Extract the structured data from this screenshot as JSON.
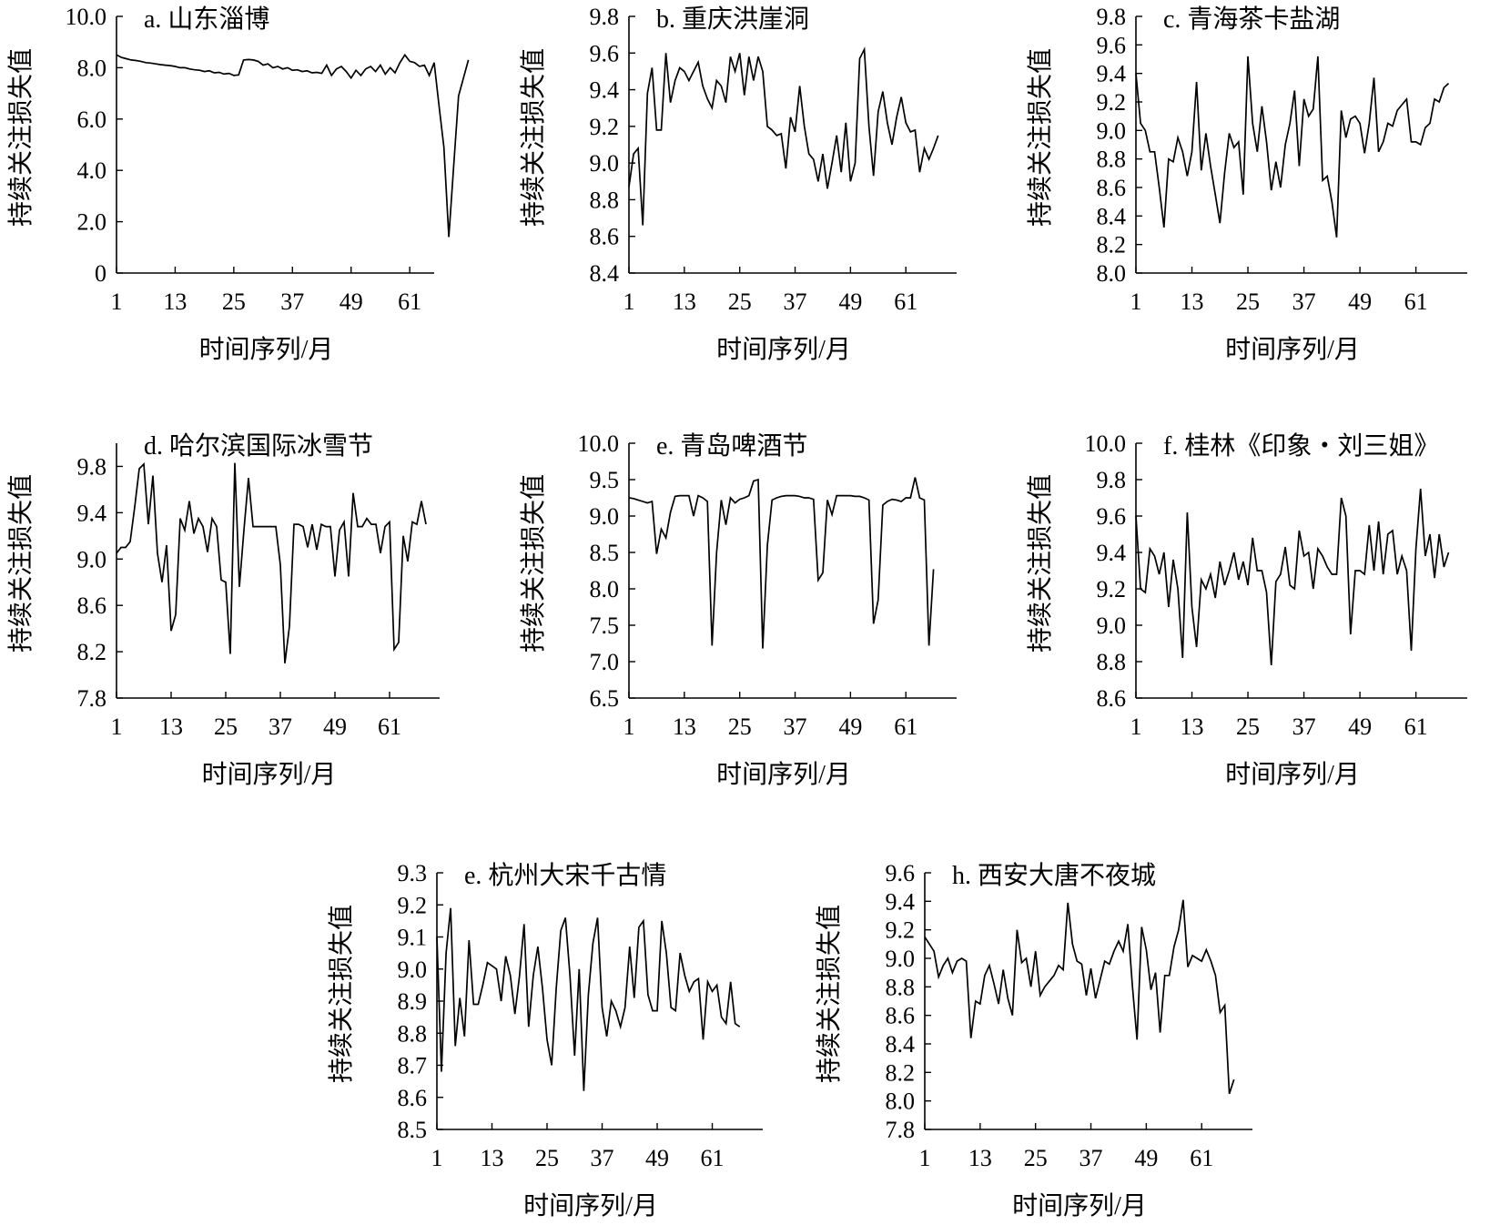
{
  "chart_data": [
    {
      "type": "line",
      "title": "a. 山东淄博",
      "xlabel": "时间序列/月",
      "ylabel": "持续关注损失值",
      "xlim": [
        1,
        66
      ],
      "xticks": [
        1,
        13,
        25,
        37,
        49,
        61
      ],
      "ylim": [
        0,
        10
      ],
      "yticks": [
        0,
        2,
        4,
        6,
        8,
        10
      ],
      "ytick_labels": [
        "0",
        "2.0",
        "4.0",
        "6.0",
        "8.0",
        "10.0"
      ],
      "grid": false,
      "x_start": 1,
      "values": [
        8.5,
        8.4,
        8.35,
        8.3,
        8.28,
        8.25,
        8.2,
        8.18,
        8.15,
        8.12,
        8.1,
        8.08,
        8.05,
        8.0,
        8.0,
        7.95,
        7.92,
        7.9,
        7.85,
        7.88,
        7.8,
        7.82,
        7.75,
        7.78,
        7.7,
        7.72,
        8.3,
        8.32,
        8.3,
        8.25,
        8.1,
        8.15,
        8.0,
        8.05,
        7.95,
        8.0,
        7.9,
        7.92,
        7.85,
        7.88,
        7.8,
        7.82,
        7.78,
        8.1,
        7.7,
        7.95,
        8.05,
        7.85,
        7.6,
        7.9,
        7.7,
        7.95,
        8.05,
        7.85,
        8.1,
        7.75,
        8.0,
        7.8,
        8.2,
        8.5,
        8.25,
        8.2,
        8.05,
        8.1,
        7.7,
        8.2,
        6.5,
        4.9,
        1.4,
        4.2,
        6.9,
        7.6,
        8.3
      ]
    },
    {
      "type": "line",
      "title": "b. 重庆洪崖洞",
      "xlabel": "时间序列/月",
      "ylabel": "持续关注损失值",
      "xlim": [
        1,
        72
      ],
      "xticks": [
        1,
        13,
        25,
        37,
        49,
        61
      ],
      "ylim": [
        8.4,
        9.8
      ],
      "yticks": [
        8.4,
        8.6,
        8.8,
        9.0,
        9.2,
        9.4,
        9.6,
        9.8
      ],
      "ytick_labels": [
        "8.4",
        "8.6",
        "8.8",
        "9.0",
        "9.2",
        "9.4",
        "9.6",
        "9.8"
      ],
      "grid": false,
      "x_start": 1,
      "values": [
        8.87,
        9.05,
        9.08,
        8.66,
        9.38,
        9.52,
        9.18,
        9.18,
        9.6,
        9.33,
        9.45,
        9.52,
        9.5,
        9.45,
        9.5,
        9.55,
        9.42,
        9.35,
        9.3,
        9.45,
        9.42,
        9.33,
        9.58,
        9.5,
        9.6,
        9.37,
        9.58,
        9.45,
        9.58,
        9.5,
        9.2,
        9.18,
        9.15,
        9.16,
        8.97,
        9.25,
        9.17,
        9.42,
        9.2,
        9.05,
        9.02,
        8.9,
        9.05,
        8.86,
        9.0,
        9.15,
        8.95,
        9.22,
        8.9,
        9.0,
        9.57,
        9.62,
        9.2,
        8.93,
        9.28,
        9.39,
        9.22,
        9.1,
        9.25,
        9.36,
        9.22,
        9.17,
        9.18,
        8.95,
        9.08,
        9.02,
        9.08,
        9.15
      ]
    },
    {
      "type": "line",
      "title": "c. 青海茶卡盐湖",
      "xlabel": "时间序列/月",
      "ylabel": "持续关注损失值",
      "xlim": [
        1,
        72
      ],
      "xticks": [
        1,
        13,
        25,
        37,
        49,
        61
      ],
      "ylim": [
        8.0,
        9.8
      ],
      "yticks": [
        8.0,
        8.2,
        8.4,
        8.6,
        8.8,
        9.0,
        9.2,
        9.4,
        9.6,
        9.8
      ],
      "ytick_labels": [
        "8.0",
        "8.2",
        "8.4",
        "8.6",
        "8.8",
        "9.0",
        "9.2",
        "9.4",
        "9.6",
        "9.8"
      ],
      "grid": false,
      "x_start": 1,
      "values": [
        9.4,
        9.05,
        9.0,
        8.85,
        8.85,
        8.6,
        8.32,
        8.8,
        8.78,
        8.95,
        8.85,
        8.68,
        8.85,
        9.34,
        8.72,
        8.98,
        8.75,
        8.55,
        8.35,
        8.7,
        8.98,
        8.88,
        8.92,
        8.55,
        9.52,
        9.05,
        8.85,
        9.17,
        8.92,
        8.58,
        8.78,
        8.6,
        8.9,
        9.05,
        9.28,
        8.75,
        9.22,
        9.1,
        9.15,
        9.52,
        8.65,
        8.68,
        8.5,
        8.25,
        9.14,
        8.95,
        9.08,
        9.1,
        9.05,
        8.84,
        9.05,
        9.37,
        8.85,
        8.92,
        9.05,
        9.03,
        9.14,
        9.18,
        9.22,
        8.92,
        8.92,
        8.9,
        9.02,
        9.05,
        9.22,
        9.2,
        9.3,
        9.33
      ]
    },
    {
      "type": "line",
      "title": "d. 哈尔滨国际冰雪节",
      "xlabel": "时间序列/月",
      "ylabel": "持续关注损失值",
      "xlim": [
        1,
        72
      ],
      "xticks": [
        1,
        13,
        25,
        37,
        49,
        61
      ],
      "ylim": [
        7.8,
        10.0
      ],
      "yticks": [
        7.8,
        8.2,
        8.6,
        9.0,
        9.4,
        9.8
      ],
      "ytick_labels": [
        "7.8",
        "8.2",
        "8.6",
        "9.0",
        "9.4",
        "9.8"
      ],
      "grid": false,
      "x_start": 1,
      "values": [
        9.05,
        9.1,
        9.1,
        9.15,
        9.45,
        9.78,
        9.82,
        9.3,
        9.72,
        9.05,
        8.8,
        9.12,
        8.38,
        8.52,
        9.35,
        9.25,
        9.5,
        9.22,
        9.35,
        9.28,
        9.06,
        9.35,
        9.28,
        8.82,
        8.8,
        8.18,
        9.83,
        8.76,
        9.25,
        9.7,
        9.28,
        9.28,
        9.28,
        9.28,
        9.28,
        9.28,
        8.95,
        8.1,
        8.42,
        9.3,
        9.3,
        9.28,
        9.1,
        9.3,
        9.08,
        9.3,
        9.28,
        9.28,
        8.85,
        9.25,
        9.32,
        8.85,
        9.57,
        9.28,
        9.28,
        9.35,
        9.3,
        9.3,
        9.05,
        9.28,
        9.32,
        8.22,
        8.28,
        9.2,
        8.98,
        9.32,
        9.3,
        9.5,
        9.3
      ]
    },
    {
      "type": "line",
      "title": "e. 青岛啤酒节",
      "xlabel": "时间序列/月",
      "ylabel": "持续关注损失值",
      "xlim": [
        1,
        72
      ],
      "xticks": [
        1,
        13,
        25,
        37,
        49,
        61
      ],
      "ylim": [
        6.5,
        10.0
      ],
      "yticks": [
        6.5,
        7.0,
        7.5,
        8.0,
        8.5,
        9.0,
        9.5,
        10.0
      ],
      "ytick_labels": [
        "6.5",
        "7.0",
        "7.5",
        "8.0",
        "8.5",
        "9.0",
        "9.5",
        "10.0"
      ],
      "grid": false,
      "x_start": 1,
      "values": [
        9.25,
        9.24,
        9.22,
        9.2,
        9.18,
        9.2,
        8.48,
        8.82,
        8.7,
        9.05,
        9.27,
        9.28,
        9.28,
        9.28,
        9.0,
        9.28,
        9.25,
        9.2,
        7.22,
        8.5,
        9.22,
        8.88,
        9.25,
        9.18,
        9.23,
        9.25,
        9.28,
        9.48,
        9.5,
        7.18,
        8.6,
        9.22,
        9.25,
        9.27,
        9.28,
        9.28,
        9.28,
        9.27,
        9.25,
        9.25,
        9.23,
        8.12,
        8.22,
        9.22,
        9.02,
        9.28,
        9.28,
        9.28,
        9.28,
        9.27,
        9.27,
        9.25,
        9.22,
        7.52,
        7.85,
        9.15,
        9.2,
        9.23,
        9.22,
        9.2,
        9.25,
        9.25,
        9.53,
        9.25,
        9.22,
        7.22,
        8.27
      ]
    },
    {
      "type": "line",
      "title": "f. 桂林《印象・刘三姐》",
      "xlabel": "时间序列/月",
      "ylabel": "持续关注损失值",
      "xlim": [
        1,
        72
      ],
      "xticks": [
        1,
        13,
        25,
        37,
        49,
        61
      ],
      "ylim": [
        8.6,
        10.0
      ],
      "yticks": [
        8.6,
        8.8,
        9.0,
        9.2,
        9.4,
        9.6,
        9.8,
        10.0
      ],
      "ytick_labels": [
        "8.6",
        "8.8",
        "9.0",
        "9.2",
        "9.4",
        "9.6",
        "9.8",
        "10.0"
      ],
      "grid": false,
      "x_start": 1,
      "values": [
        9.6,
        9.2,
        9.18,
        9.42,
        9.38,
        9.28,
        9.4,
        9.1,
        9.36,
        9.2,
        8.82,
        9.62,
        9.1,
        8.88,
        9.25,
        9.2,
        9.28,
        9.15,
        9.35,
        9.22,
        9.3,
        9.4,
        9.25,
        9.35,
        9.22,
        9.48,
        9.3,
        9.3,
        9.18,
        8.78,
        9.24,
        9.28,
        9.43,
        9.22,
        9.2,
        9.52,
        9.38,
        9.4,
        9.2,
        9.42,
        9.38,
        9.32,
        9.28,
        9.28,
        9.7,
        9.6,
        8.95,
        9.3,
        9.3,
        9.28,
        9.55,
        9.3,
        9.57,
        9.28,
        9.5,
        9.52,
        9.28,
        9.38,
        9.3,
        8.86,
        9.42,
        9.75,
        9.38,
        9.5,
        9.26,
        9.5,
        9.32,
        9.4
      ]
    },
    {
      "type": "line",
      "title": "e. 杭州大宋千古情",
      "xlabel": "时间序列/月",
      "ylabel": "持续关注损失值",
      "xlim": [
        1,
        72
      ],
      "xticks": [
        1,
        13,
        25,
        37,
        49,
        61
      ],
      "ylim": [
        8.5,
        9.3
      ],
      "yticks": [
        8.5,
        8.6,
        8.7,
        8.8,
        8.9,
        9.0,
        9.1,
        9.2,
        9.3
      ],
      "ytick_labels": [
        "8.5",
        "8.6",
        "8.7",
        "8.8",
        "8.9",
        "9.0",
        "9.1",
        "9.2",
        "9.3"
      ],
      "grid": false,
      "x_start": 1,
      "values": [
        9.1,
        8.68,
        9.05,
        9.19,
        8.76,
        8.91,
        8.79,
        9.09,
        8.89,
        8.89,
        8.95,
        9.02,
        9.01,
        9.0,
        8.9,
        9.04,
        8.98,
        8.86,
        8.98,
        9.14,
        8.82,
        8.98,
        9.07,
        8.94,
        8.78,
        8.7,
        8.94,
        9.12,
        9.16,
        8.98,
        8.73,
        9.0,
        8.62,
        8.92,
        9.08,
        9.16,
        8.88,
        8.79,
        8.9,
        8.87,
        8.82,
        8.88,
        9.07,
        8.91,
        9.13,
        9.15,
        8.92,
        8.87,
        8.87,
        9.15,
        9.05,
        8.88,
        8.87,
        9.05,
        8.98,
        8.93,
        8.96,
        8.97,
        8.78,
        8.96,
        8.93,
        8.95,
        8.85,
        8.83,
        8.96,
        8.83,
        8.82
      ]
    },
    {
      "type": "line",
      "title": "h. 西安大唐不夜城",
      "xlabel": "时间序列/月",
      "ylabel": "持续关注损失值",
      "xlim": [
        1,
        72
      ],
      "xticks": [
        1,
        13,
        25,
        37,
        49,
        61
      ],
      "ylim": [
        7.8,
        9.6
      ],
      "yticks": [
        7.8,
        8.0,
        8.2,
        8.4,
        8.6,
        8.8,
        9.0,
        9.2,
        9.4,
        9.6
      ],
      "ytick_labels": [
        "7.8",
        "8.0",
        "8.2",
        "8.4",
        "8.6",
        "8.8",
        "9.0",
        "9.2",
        "9.4",
        "9.6"
      ],
      "grid": false,
      "x_start": 1,
      "values": [
        9.15,
        9.1,
        9.05,
        8.87,
        8.95,
        9.0,
        8.9,
        8.98,
        9.0,
        8.98,
        8.44,
        8.7,
        8.68,
        8.88,
        8.95,
        8.82,
        8.68,
        8.92,
        8.72,
        8.6,
        9.2,
        8.97,
        9.0,
        8.8,
        9.05,
        8.74,
        8.8,
        8.84,
        8.88,
        8.95,
        8.92,
        9.39,
        9.1,
        8.98,
        8.96,
        8.74,
        8.93,
        8.72,
        8.85,
        8.98,
        8.96,
        9.05,
        9.12,
        9.05,
        9.24,
        8.8,
        8.43,
        9.22,
        9.06,
        8.78,
        8.9,
        8.48,
        8.88,
        8.88,
        9.08,
        9.2,
        9.41,
        8.94,
        9.02,
        9.0,
        8.98,
        9.06,
        8.98,
        8.88,
        8.62,
        8.67,
        8.05,
        8.15
      ]
    }
  ]
}
